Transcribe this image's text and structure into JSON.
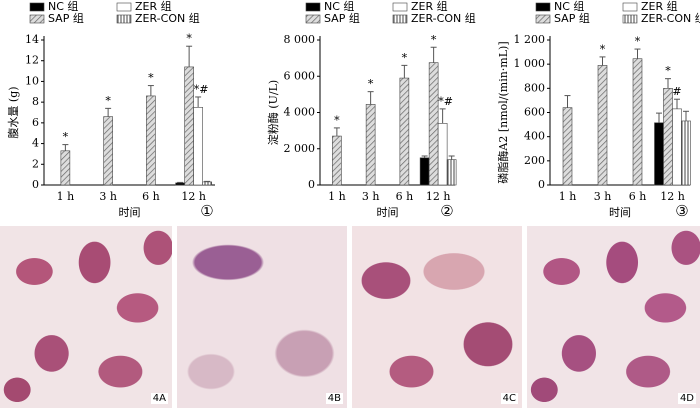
{
  "chart_data": [
    {
      "type": "bar",
      "y_label": "腹水量 (g)",
      "x_label": "时间",
      "panel": "①",
      "categories": [
        "1 h",
        "3 h",
        "6 h",
        "12 h"
      ],
      "ylim": [
        0,
        14
      ],
      "yticks": [
        0,
        2,
        4,
        6,
        8,
        10,
        12,
        14
      ],
      "series": [
        {
          "name": "NC 组",
          "color": "#000000",
          "pattern": "solid",
          "values": [
            null,
            null,
            null,
            0.2
          ],
          "errors": [
            null,
            null,
            null,
            0.05
          ],
          "significance": [
            null,
            null,
            null,
            null
          ]
        },
        {
          "name": "SAP 组",
          "color": "#9a9a9a",
          "pattern": "hatch",
          "values": [
            3.3,
            6.6,
            8.6,
            11.4
          ],
          "errors": [
            0.6,
            0.8,
            1.0,
            2.0
          ],
          "significance": [
            "*",
            "*",
            "*",
            "*"
          ]
        },
        {
          "name": "ZER 组",
          "color": "#ffffff",
          "pattern": "solid",
          "values": [
            null,
            null,
            null,
            7.5
          ],
          "errors": [
            null,
            null,
            null,
            1.0
          ],
          "significance": [
            null,
            null,
            null,
            "*#"
          ]
        },
        {
          "name": "ZER-CON 组",
          "color": "#777777",
          "pattern": "vlines",
          "values": [
            null,
            null,
            null,
            0.3
          ],
          "errors": [
            null,
            null,
            null,
            0.05
          ],
          "significance": [
            null,
            null,
            null,
            null
          ]
        }
      ]
    },
    {
      "type": "bar",
      "y_label": "淀粉酶 (U/L)",
      "x_label": "时间",
      "panel": "②",
      "categories": [
        "1 h",
        "3 h",
        "6 h",
        "12 h"
      ],
      "ylim": [
        0,
        8000
      ],
      "yticks": [
        0,
        {
          "value": 2000,
          "label": "2 000"
        },
        {
          "value": 4000,
          "label": "4 000"
        },
        {
          "value": 6000,
          "label": "6 000"
        },
        {
          "value": 8000,
          "label": "8 000"
        }
      ],
      "series": [
        {
          "name": "NC 组",
          "color": "#000000",
          "pattern": "solid",
          "values": [
            null,
            null,
            null,
            1500
          ],
          "errors": [
            null,
            null,
            null,
            100
          ],
          "significance": [
            null,
            null,
            null,
            null
          ]
        },
        {
          "name": "SAP 组",
          "color": "#9a9a9a",
          "pattern": "hatch",
          "values": [
            2700,
            4450,
            5900,
            6750
          ],
          "errors": [
            450,
            700,
            700,
            850
          ],
          "significance": [
            "*",
            "*",
            "*",
            "*"
          ]
        },
        {
          "name": "ZER 组",
          "color": "#ffffff",
          "pattern": "solid",
          "values": [
            null,
            null,
            null,
            3400
          ],
          "errors": [
            null,
            null,
            null,
            800
          ],
          "significance": [
            null,
            null,
            null,
            "*#"
          ]
        },
        {
          "name": "ZER-CON 组",
          "color": "#777777",
          "pattern": "vlines",
          "values": [
            null,
            null,
            null,
            1400
          ],
          "errors": [
            null,
            null,
            null,
            200
          ],
          "significance": [
            null,
            null,
            null,
            null
          ]
        }
      ]
    },
    {
      "type": "bar",
      "y_label": "磷脂酶A2 [nmol/(min·mL)]",
      "x_label": "时间",
      "panel": "③",
      "categories": [
        "1 h",
        "3 h",
        "6 h",
        "12 h"
      ],
      "ylim": [
        0,
        1200
      ],
      "yticks": [
        0,
        200,
        400,
        600,
        800,
        {
          "value": 1000,
          "label": "1 000"
        },
        {
          "value": 1200,
          "label": "1 200"
        }
      ],
      "series": [
        {
          "name": "NC 组",
          "color": "#000000",
          "pattern": "solid",
          "values": [
            null,
            null,
            null,
            515
          ],
          "errors": [
            null,
            null,
            null,
            80
          ],
          "significance": [
            null,
            null,
            null,
            null
          ]
        },
        {
          "name": "SAP 组",
          "color": "#9a9a9a",
          "pattern": "hatch",
          "values": [
            640,
            990,
            1045,
            800
          ],
          "errors": [
            100,
            70,
            80,
            80
          ],
          "significance": [
            null,
            "*",
            "*",
            "*"
          ]
        },
        {
          "name": "ZER 组",
          "color": "#ffffff",
          "pattern": "solid",
          "values": [
            null,
            null,
            null,
            630
          ],
          "errors": [
            null,
            null,
            null,
            80
          ],
          "significance": [
            null,
            null,
            null,
            "#"
          ]
        },
        {
          "name": "ZER-CON 组",
          "color": "#777777",
          "pattern": "vlines",
          "values": [
            null,
            null,
            null,
            530
          ],
          "errors": [
            null,
            null,
            null,
            80
          ],
          "significance": [
            null,
            null,
            null,
            null
          ]
        }
      ]
    }
  ],
  "images": [
    {
      "label": "4A"
    },
    {
      "label": "4B"
    },
    {
      "label": "4C"
    },
    {
      "label": "4D"
    }
  ]
}
